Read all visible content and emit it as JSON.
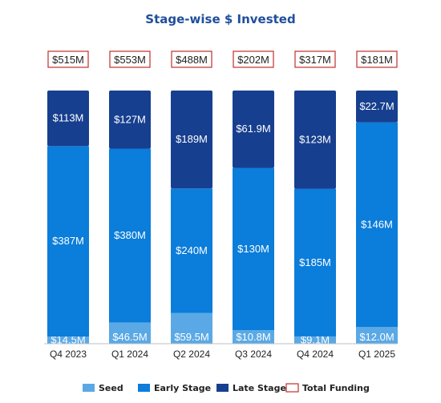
{
  "chart_data": {
    "type": "bar",
    "stacked": true,
    "title": "Stage-wise $ Invested",
    "categories": [
      "Q4 2023",
      "Q1 2024",
      "Q2 2024",
      "Q3 2024",
      "Q4 2024",
      "Q1 2025"
    ],
    "series": [
      {
        "name": "Seed",
        "color": "#5aa9e6",
        "values": [
          14.5,
          46.5,
          59.5,
          10.8,
          9.1,
          12.0
        ],
        "labels": [
          "$14.5M",
          "$46.5M",
          "$59.5M",
          "$10.8M",
          "$9.1M",
          "$12.0M"
        ]
      },
      {
        "name": "Early Stage",
        "color": "#0b7dda",
        "values": [
          387,
          380,
          240,
          130,
          185,
          146
        ],
        "labels": [
          "$387M",
          "$380M",
          "$240M",
          "$130M",
          "$185M",
          "$146M"
        ]
      },
      {
        "name": "Late Stage",
        "color": "#173f8f",
        "values": [
          113,
          127,
          189,
          61.9,
          123,
          22.7
        ],
        "labels": [
          "$113M",
          "$127M",
          "$189M",
          "$61.9M",
          "$123M",
          "$22.7M"
        ]
      }
    ],
    "totals": {
      "name": "Total Funding",
      "color": "#c0302a",
      "values": [
        515,
        553,
        488,
        202,
        317,
        181
      ],
      "labels": [
        "$515M",
        "$553M",
        "$488M",
        "$202M",
        "$317M",
        "$181M"
      ]
    },
    "normalized": true,
    "legend_position": "bottom",
    "grid": false
  }
}
